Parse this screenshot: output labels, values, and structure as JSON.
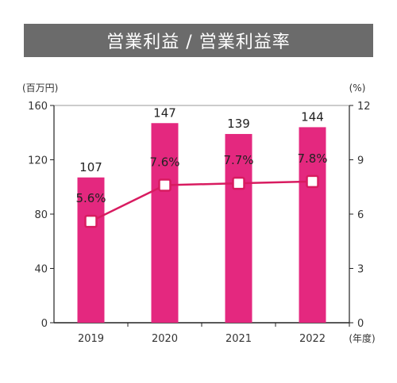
{
  "chart_data": {
    "type": "bar",
    "title": "営業利益 / 営業利益率",
    "categories": [
      "2019",
      "2020",
      "2021",
      "2022"
    ],
    "series": [
      {
        "values": [
          107,
          147,
          139,
          144
        ],
        "axis": "left",
        "render": "bar",
        "color": "#e4287f"
      },
      {
        "values": [
          5.6,
          7.6,
          7.7,
          7.8
        ],
        "axis": "right",
        "render": "line",
        "unit": "%",
        "color": "#d81b60"
      }
    ],
    "ylabel": "(百万円)",
    "y2label": "(%)",
    "xlabel": "(年度)",
    "ylim": [
      0,
      160
    ],
    "yticks": [
      0,
      40,
      80,
      120,
      160
    ],
    "y2lim": [
      0,
      12
    ],
    "y2ticks": [
      0,
      3,
      6,
      9,
      12
    ],
    "grid": false,
    "legend": "none"
  }
}
